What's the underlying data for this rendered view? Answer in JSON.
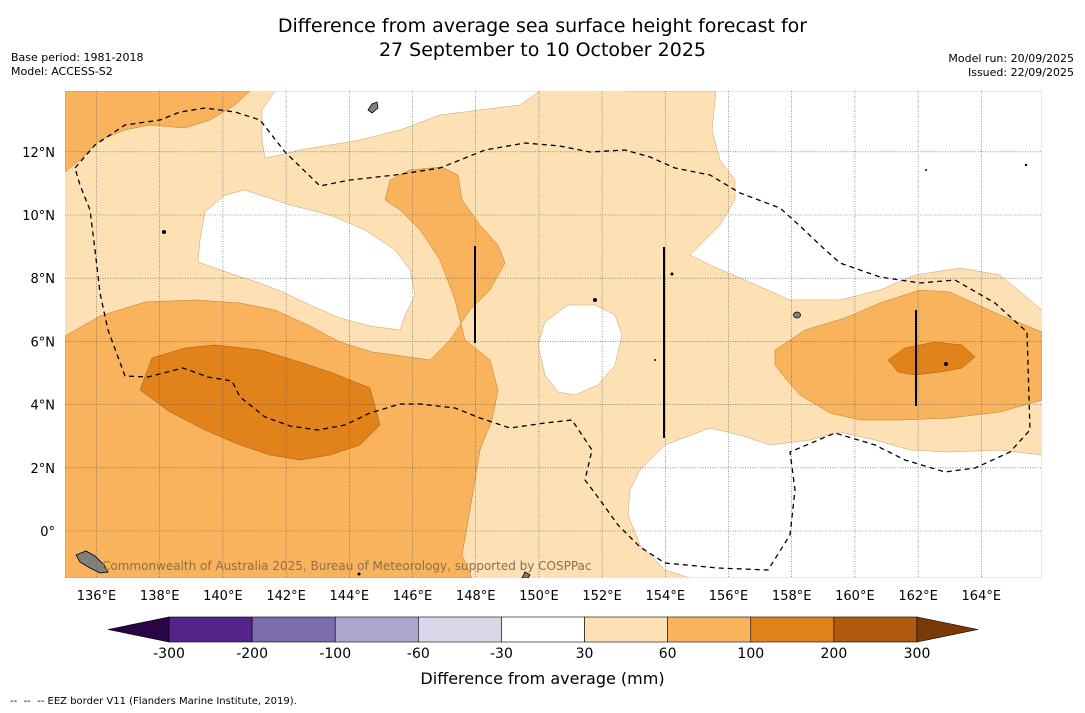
{
  "title_line1": "Difference from average sea surface height forecast for",
  "title_line2": "27 September to 10 October 2025",
  "base_period": "Base period: 1981-2018",
  "model": "Model: ACCESS-S2",
  "model_run": "Model run: 20/09/2025",
  "issued": "Issued: 22/09/2025",
  "credit": "Commonwealth of Australia 2025, Bureau of Meteorology, supported by COSPPac",
  "colorbar_label": "Difference from average (mm)",
  "footnote": "--  --  -- EEZ border V11 (Flanders Marine Institute, 2019).",
  "lon_labels": [
    "136°E",
    "138°E",
    "140°E",
    "142°E",
    "144°E",
    "146°E",
    "148°E",
    "150°E",
    "152°E",
    "154°E",
    "156°E",
    "158°E",
    "160°E",
    "162°E",
    "164°E"
  ],
  "lat_labels": [
    "0°",
    "2°N",
    "4°N",
    "6°N",
    "8°N",
    "10°N",
    "12°N"
  ],
  "colorbar": {
    "ticks": [
      "-300",
      "-200",
      "-100",
      "-60",
      "-30",
      "30",
      "60",
      "100",
      "200",
      "300"
    ],
    "colors": [
      "#53248a",
      "#7b6cad",
      "#aca6cf",
      "#d8d8ea",
      "#ffffff",
      "#fde0b4",
      "#f8b35c",
      "#e1821a",
      "#b05a0f"
    ],
    "under_color": "#2a0545",
    "over_color": "#7a3a08"
  },
  "colors": {
    "band_30_60": "#fde0b4",
    "band_60_100": "#f8b35c",
    "band_100_200": "#e1821a",
    "land": "#808080"
  }
}
